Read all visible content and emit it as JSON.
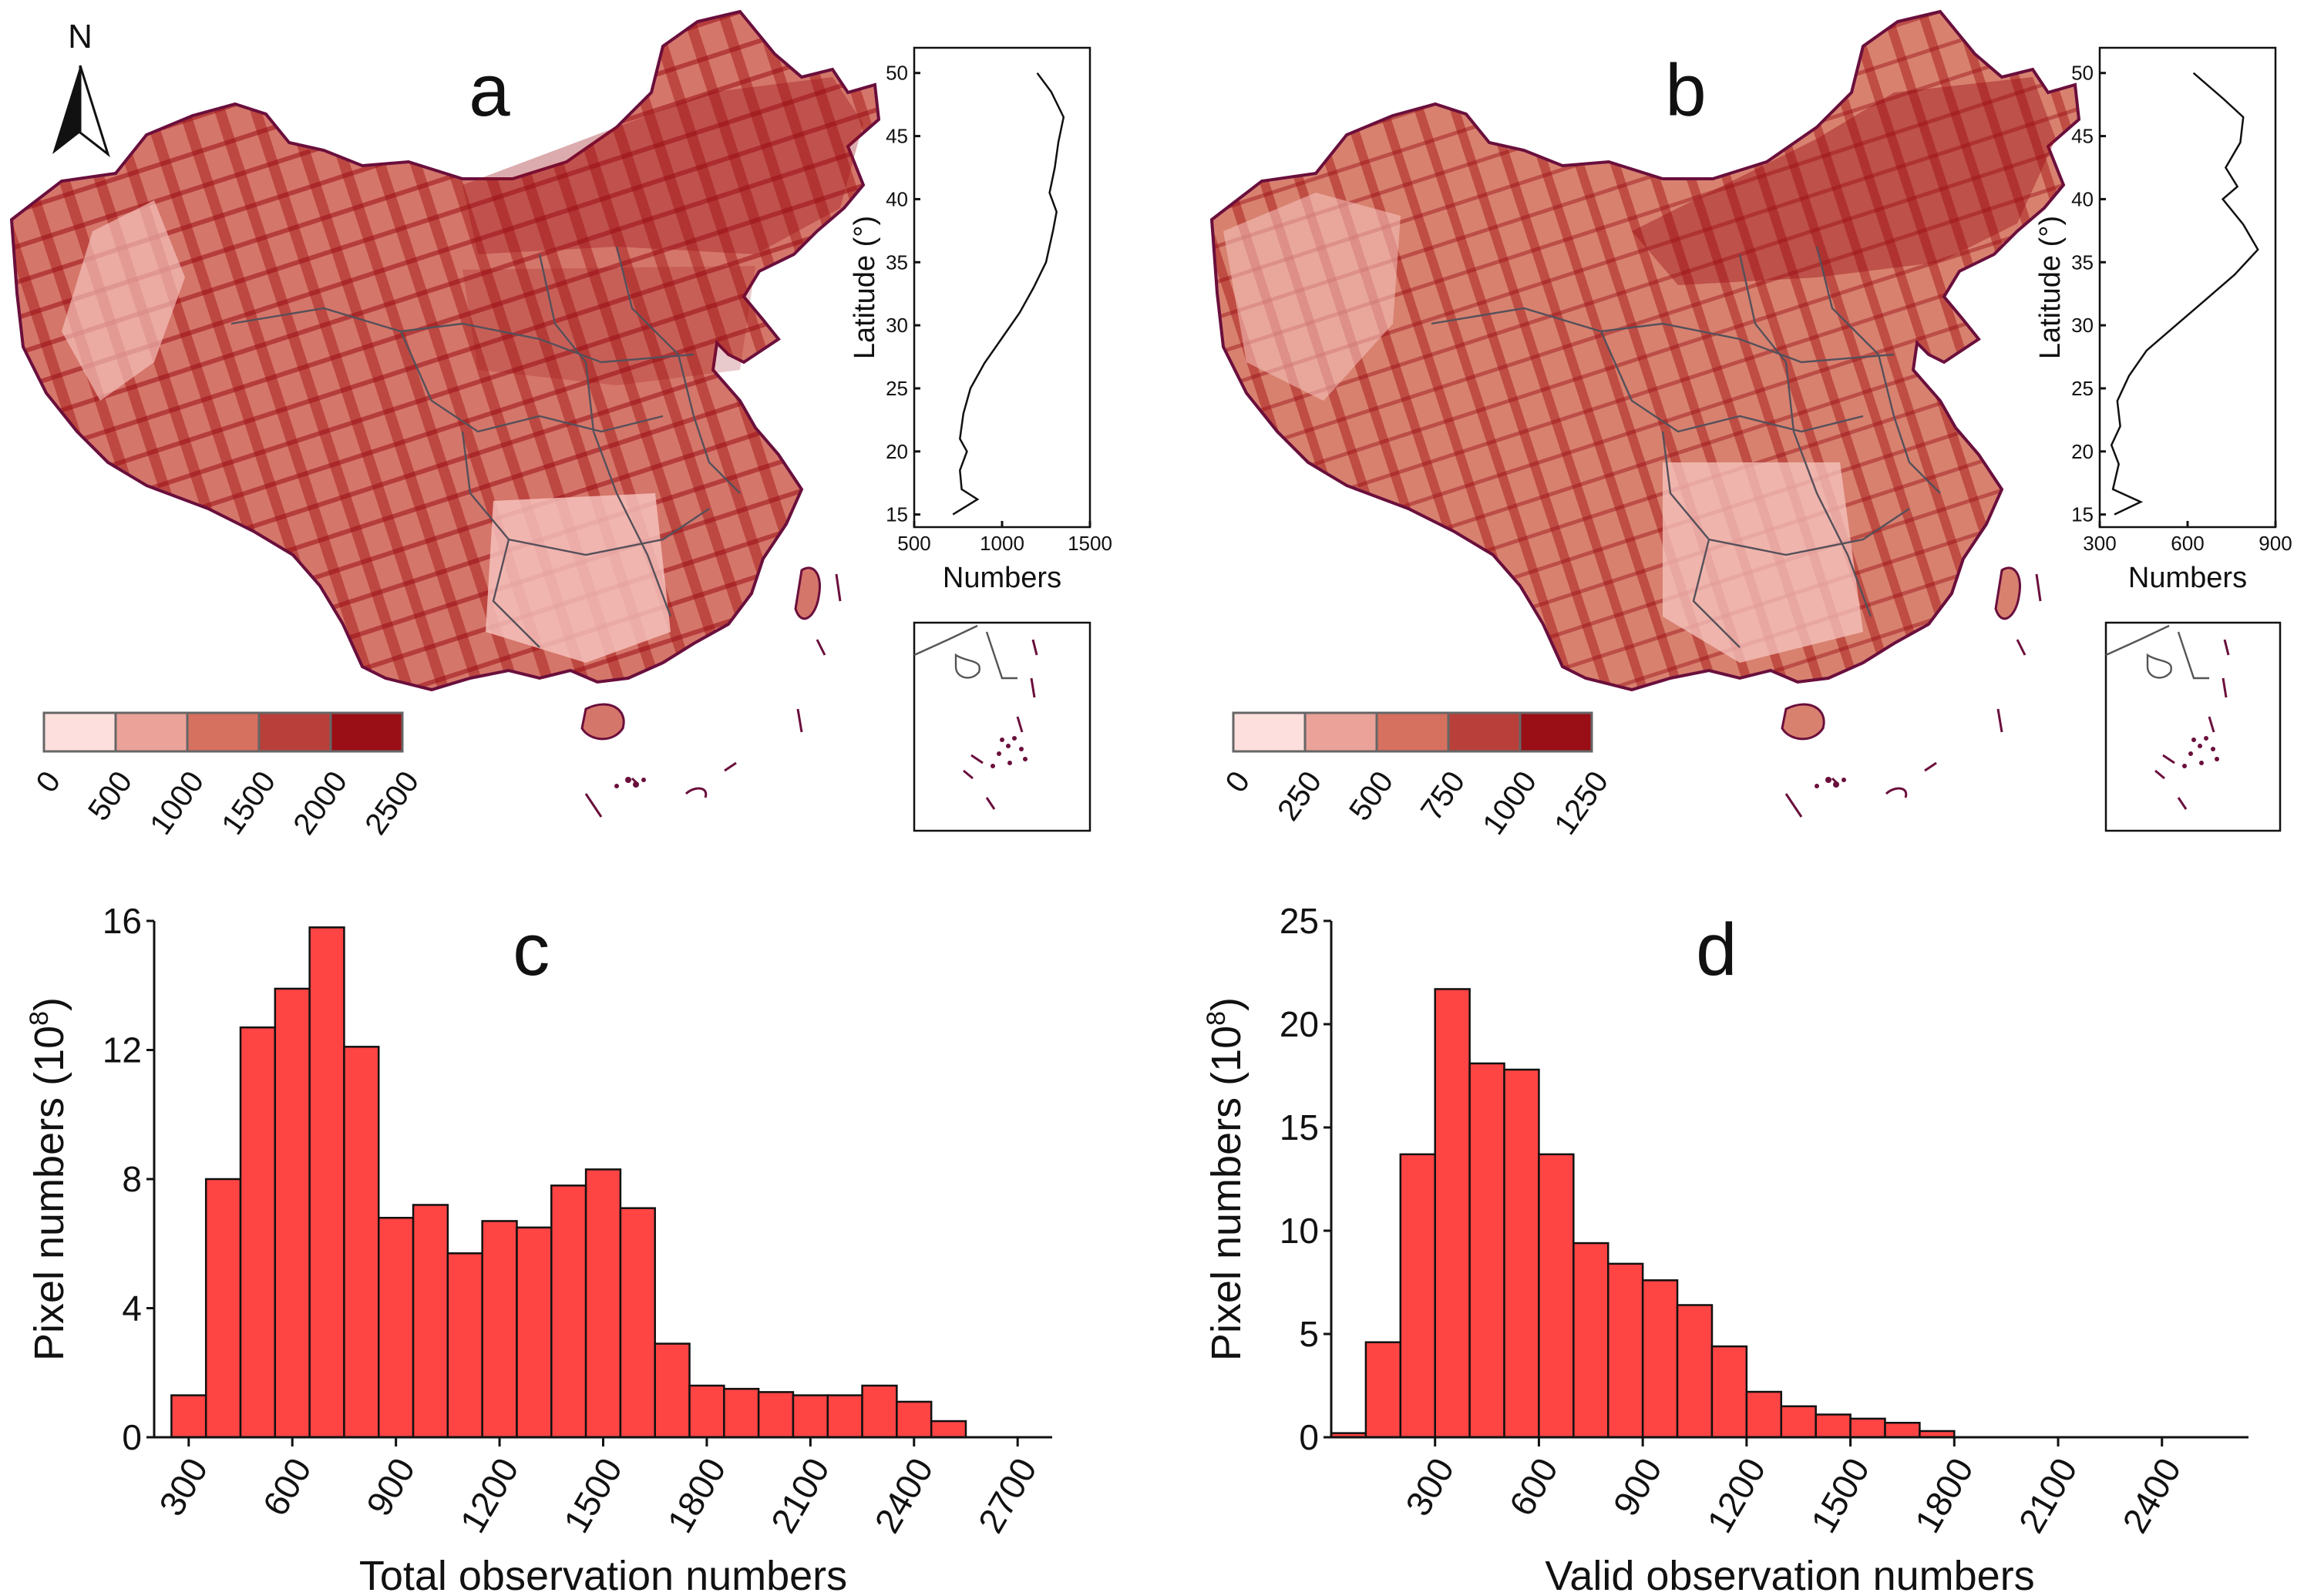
{
  "figure": {
    "north_label": "N",
    "panels": [
      {
        "id": "a",
        "letter": "a",
        "colorbar": {
          "ticks": [
            "0",
            "500",
            "1000",
            "1500",
            "2000",
            "2500"
          ],
          "colors": [
            "#fde0de",
            "#eba299",
            "#d6705f",
            "#b9403a",
            "#9a0f16"
          ]
        },
        "profile": {
          "xlabel": "Numbers",
          "ylabel": "Latitude (°)",
          "xticks": [
            "500",
            "1000",
            "1500"
          ],
          "yticks": [
            "15",
            "20",
            "25",
            "30",
            "35",
            "40",
            "45",
            "50"
          ]
        }
      },
      {
        "id": "b",
        "letter": "b",
        "colorbar": {
          "ticks": [
            "0",
            "250",
            "500",
            "750",
            "1000",
            "1250"
          ],
          "colors": [
            "#fde0de",
            "#eba299",
            "#d6705f",
            "#b9403a",
            "#9a0f16"
          ]
        },
        "profile": {
          "xlabel": "Numbers",
          "ylabel": "Latitude (°)",
          "xticks": [
            "300",
            "600",
            "900"
          ],
          "yticks": [
            "15",
            "20",
            "25",
            "30",
            "35",
            "40",
            "45",
            "50"
          ]
        }
      }
    ],
    "map_colors": {
      "land": "#d5766a",
      "swath_dark": "#9a0f16",
      "swath_mid": "#b9403a",
      "light": "#f7c6c0",
      "coast": "#6a0f3c"
    }
  },
  "chart_data": [
    {
      "id": "a-profile",
      "type": "line",
      "x": [
        1200,
        1280,
        1350,
        1320,
        1300,
        1270,
        1310,
        1290,
        1250,
        1180,
        1100,
        1000,
        900,
        820,
        780,
        760,
        800,
        760,
        770,
        860,
        720
      ],
      "y": [
        50,
        48.5,
        46.5,
        44.5,
        42.5,
        40.5,
        39,
        37.5,
        35,
        33,
        31,
        29,
        27,
        25,
        23,
        21,
        20,
        18.5,
        17,
        16.2,
        15
      ],
      "xlim": [
        500,
        1500
      ],
      "ylim": [
        14,
        52
      ],
      "xlabel": "Numbers",
      "ylabel": "Latitude (°)"
    },
    {
      "id": "b-profile",
      "type": "line",
      "x": [
        620,
        720,
        790,
        780,
        730,
        770,
        720,
        790,
        840,
        760,
        660,
        560,
        460,
        400,
        360,
        370,
        340,
        365,
        345,
        440,
        350
      ],
      "y": [
        50,
        48,
        46.5,
        44.5,
        42.5,
        41,
        40,
        38,
        36,
        34,
        32,
        30,
        28,
        26,
        24,
        22,
        20.5,
        19,
        17,
        16,
        15
      ],
      "xlim": [
        300,
        900
      ],
      "ylim": [
        14,
        52
      ],
      "xlabel": "Numbers",
      "ylabel": "Latitude (°)"
    },
    {
      "id": "c",
      "type": "bar",
      "letter": "c",
      "bin_width": 100,
      "bin_starts": [
        250,
        350,
        450,
        550,
        650,
        750,
        850,
        950,
        1050,
        1150,
        1250,
        1350,
        1450,
        1550,
        1650,
        1750,
        1850,
        1950,
        2050,
        2150,
        2250,
        2350,
        2450
      ],
      "values": [
        1.3,
        8.0,
        12.7,
        13.9,
        15.8,
        12.1,
        6.8,
        7.2,
        5.7,
        6.7,
        6.5,
        7.8,
        8.3,
        7.1,
        2.9,
        1.6,
        1.5,
        1.4,
        1.3,
        1.3,
        1.6,
        1.1,
        0.5
      ],
      "xlim": [
        200,
        2800
      ],
      "ylim": [
        0,
        16
      ],
      "xticks": [
        "300",
        "600",
        "900",
        "1200",
        "1500",
        "1800",
        "2100",
        "2400",
        "2700"
      ],
      "yticks": [
        "0",
        "4",
        "8",
        "12",
        "16"
      ],
      "xlabel": "Total observation numbers",
      "ylabel_main": "Pixel numbers (10",
      "ylabel_sup": "8",
      "ylabel_end": ")"
    },
    {
      "id": "d",
      "type": "bar",
      "letter": "d",
      "bin_width": 100,
      "bin_starts": [
        0,
        100,
        200,
        300,
        400,
        500,
        600,
        700,
        800,
        900,
        1000,
        1100,
        1200,
        1300,
        1400,
        1500,
        1600,
        1700
      ],
      "values": [
        0.2,
        4.6,
        13.7,
        21.7,
        18.1,
        17.8,
        13.7,
        9.4,
        8.4,
        7.6,
        6.4,
        4.4,
        2.2,
        1.5,
        1.1,
        0.9,
        0.7,
        0.3
      ],
      "xlim": [
        0,
        2650
      ],
      "ylim": [
        0,
        25
      ],
      "xticks": [
        "300",
        "600",
        "900",
        "1200",
        "1500",
        "1800",
        "2100",
        "2400"
      ],
      "yticks": [
        "0",
        "5",
        "10",
        "15",
        "20",
        "25"
      ],
      "xlabel": "Valid observation numbers",
      "ylabel_main": "Pixel numbers (10",
      "ylabel_sup": "8",
      "ylabel_end": ")"
    }
  ]
}
